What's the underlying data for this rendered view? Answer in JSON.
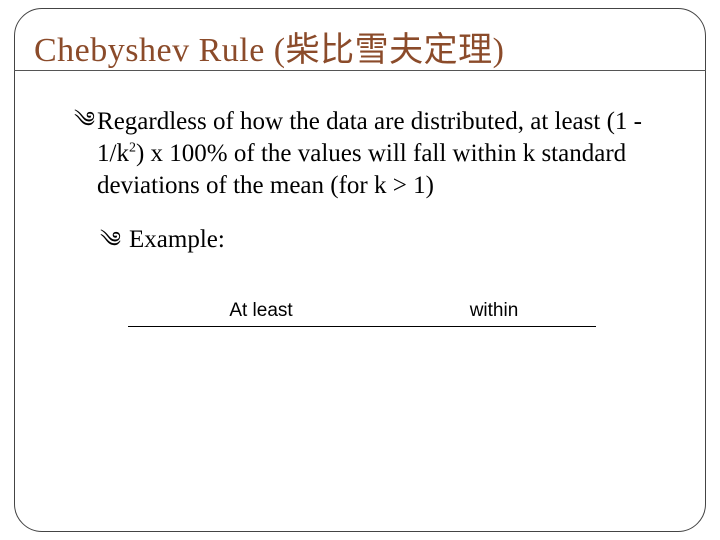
{
  "title": "Chebyshev Rule (柴比雪夫定理)",
  "title_color": "#8B4B2A",
  "title_fontsize": 34,
  "bullet_glyph": "༄",
  "main_point_html": "Regardless of how the data are distributed, at least (1 - 1/k2) x 100% of the values will fall within k standard deviations of the mean (for k > 1)",
  "main_point_plain_prefix": "Regardless of how the data are distributed, at least (1 - 1/k",
  "main_point_sup": "2",
  "main_point_plain_suffix": ") x 100% of the values will fall within k standard deviations of the mean (for k > 1)",
  "example_label": "Example:",
  "table": {
    "columns": [
      "At least",
      "within"
    ],
    "header_fontsize": 19,
    "rule_color": "#000000"
  },
  "layout": {
    "slide_w": 720,
    "slide_h": 540,
    "frame_radius": 28
  }
}
